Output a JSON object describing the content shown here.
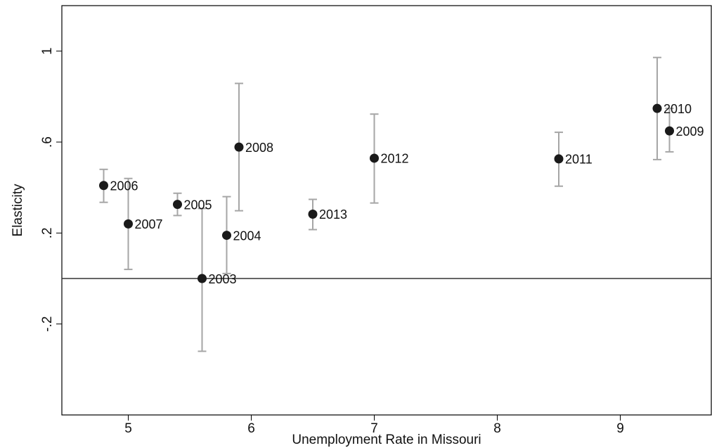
{
  "chart_data": {
    "type": "scatter",
    "x_label": "Unemployment Rate in Missouri",
    "y_label": "Elasticity",
    "labels": [
      "2006",
      "2007",
      "2005",
      "2003",
      "2004",
      "2008",
      "2013",
      "2012",
      "2011",
      "2010",
      "2009"
    ],
    "x": [
      4.8,
      5.0,
      5.4,
      5.6,
      5.8,
      5.9,
      6.5,
      7.0,
      8.5,
      9.3,
      9.4
    ],
    "values": [
      0.409,
      0.24,
      0.326,
      0.0,
      0.19,
      0.578,
      0.283,
      0.529,
      0.526,
      0.748,
      0.649
    ],
    "ci_low": [
      0.335,
      0.04,
      0.277,
      -0.32,
      0.022,
      0.298,
      0.215,
      0.332,
      0.406,
      0.523,
      0.557
    ],
    "ci_high": [
      0.48,
      0.44,
      0.375,
      0.308,
      0.36,
      0.858,
      0.348,
      0.723,
      0.643,
      0.972,
      0.748
    ],
    "color": "#1a1a1a",
    "error_color": "#a6a6a6",
    "hline": 0,
    "xlim": [
      4.46,
      9.74
    ],
    "xticks": [
      5,
      6,
      7,
      8,
      9
    ],
    "ylim": [
      -0.6,
      1.2
    ],
    "yticks": [
      {
        "value": 1,
        "label": "1"
      },
      {
        "value": 0.6,
        "label": ".6"
      },
      {
        "value": 0.2,
        "label": ".2"
      },
      {
        "value": -0.2,
        "label": "-.2"
      }
    ]
  }
}
